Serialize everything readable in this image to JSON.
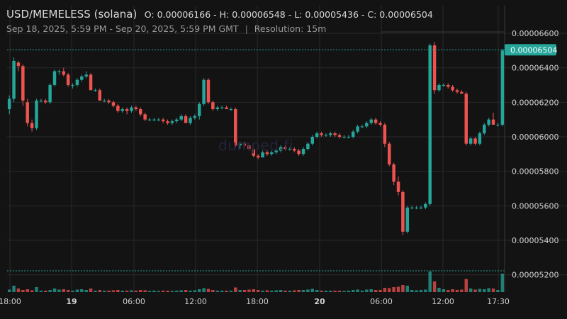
{
  "header": {
    "pair": "USD/MEMELESS (solana)",
    "ohlc": "O: 0.00006166 - H: 0.00006548 - L: 0.00005436 - C: 0.00006504",
    "range": "Sep 18, 2025, 5:59 PM - Sep 20, 2025, 5:59 PM GMT",
    "separator": "|",
    "resolution": "Resolution: 15m"
  },
  "watermark": "dumped.fi",
  "colors": {
    "up": "#26a69a",
    "down": "#ef5350",
    "grid": "#2a2a2a",
    "last_price_bg": "#26a69a"
  },
  "chart_data": {
    "type": "candlestick",
    "y_axis_ticks": [
      "0.00006600",
      "0.00006400",
      "0.00006200",
      "0.00006000",
      "0.00005800",
      "0.00005600",
      "0.00005400",
      "0.00005200"
    ],
    "y_range": [
      5.1e-05,
      6.76e-05
    ],
    "last_price": "0.00006504",
    "x_axis_ticks": [
      "18:00",
      "19",
      "06:00",
      "12:00",
      "18:00",
      "20",
      "06:00",
      "12:00",
      "17:30"
    ],
    "x_tick_bold": [
      false,
      true,
      false,
      false,
      false,
      true,
      false,
      false,
      false
    ],
    "candles": [
      [
        6.16,
        6.24,
        6.13,
        6.22
      ],
      [
        6.22,
        6.46,
        6.2,
        6.44
      ],
      [
        6.43,
        6.44,
        6.38,
        6.41
      ],
      [
        6.41,
        6.42,
        6.18,
        6.21
      ],
      [
        6.2,
        6.22,
        6.06,
        6.08
      ],
      [
        6.08,
        6.1,
        6.03,
        6.05
      ],
      [
        6.05,
        6.22,
        6.04,
        6.21
      ],
      [
        6.21,
        6.22,
        6.2,
        6.21
      ],
      [
        6.21,
        6.22,
        6.19,
        6.2
      ],
      [
        6.2,
        6.31,
        6.19,
        6.3
      ],
      [
        6.3,
        6.39,
        6.29,
        6.38
      ],
      [
        6.38,
        6.39,
        6.36,
        6.38
      ],
      [
        6.38,
        6.4,
        6.35,
        6.36
      ],
      [
        6.36,
        6.37,
        6.29,
        6.3
      ],
      [
        6.3,
        6.31,
        6.28,
        6.3
      ],
      [
        6.3,
        6.34,
        6.29,
        6.33
      ],
      [
        6.33,
        6.36,
        6.32,
        6.35
      ],
      [
        6.35,
        6.38,
        6.34,
        6.36
      ],
      [
        6.36,
        6.37,
        6.27,
        6.27
      ],
      [
        6.27,
        6.28,
        6.26,
        6.27
      ],
      [
        6.27,
        6.28,
        6.21,
        6.21
      ],
      [
        6.21,
        6.22,
        6.2,
        6.21
      ],
      [
        6.21,
        6.22,
        6.19,
        6.2
      ],
      [
        6.2,
        6.21,
        6.17,
        6.18
      ],
      [
        6.18,
        6.19,
        6.14,
        6.15
      ],
      [
        6.15,
        6.17,
        6.14,
        6.16
      ],
      [
        6.16,
        6.17,
        6.13,
        6.15
      ],
      [
        6.15,
        6.18,
        6.14,
        6.17
      ],
      [
        6.17,
        6.18,
        6.15,
        6.16
      ],
      [
        6.16,
        6.17,
        6.12,
        6.13
      ],
      [
        6.13,
        6.14,
        6.09,
        6.1
      ],
      [
        6.1,
        6.11,
        6.09,
        6.1
      ],
      [
        6.1,
        6.11,
        6.09,
        6.1
      ],
      [
        6.1,
        6.11,
        6.09,
        6.1
      ],
      [
        6.1,
        6.11,
        6.08,
        6.09
      ],
      [
        6.09,
        6.1,
        6.07,
        6.08
      ],
      [
        6.08,
        6.1,
        6.07,
        6.09
      ],
      [
        6.09,
        6.11,
        6.08,
        6.1
      ],
      [
        6.1,
        6.13,
        6.09,
        6.12
      ],
      [
        6.12,
        6.13,
        6.08,
        6.08
      ],
      [
        6.08,
        6.12,
        6.07,
        6.11
      ],
      [
        6.11,
        6.13,
        6.1,
        6.12
      ],
      [
        6.12,
        6.2,
        6.1,
        6.19
      ],
      [
        6.19,
        6.34,
        6.18,
        6.33
      ],
      [
        6.33,
        6.34,
        6.19,
        6.2
      ],
      [
        6.2,
        6.21,
        6.15,
        6.16
      ],
      [
        6.16,
        6.18,
        6.15,
        6.17
      ],
      [
        6.17,
        6.18,
        6.16,
        6.17
      ],
      [
        6.17,
        6.18,
        6.16,
        6.16
      ],
      [
        6.16,
        6.17,
        6.15,
        6.16
      ],
      [
        6.16,
        6.17,
        5.94,
        5.95
      ],
      [
        5.95,
        5.97,
        5.93,
        5.96
      ],
      [
        5.96,
        5.97,
        5.94,
        5.95
      ],
      [
        5.95,
        5.96,
        5.92,
        5.93
      ],
      [
        5.93,
        5.94,
        5.88,
        5.89
      ],
      [
        5.89,
        5.9,
        5.87,
        5.88
      ],
      [
        5.88,
        5.92,
        5.88,
        5.91
      ],
      [
        5.91,
        5.92,
        5.89,
        5.9
      ],
      [
        5.9,
        5.92,
        5.89,
        5.91
      ],
      [
        5.91,
        5.93,
        5.9,
        5.92
      ],
      [
        5.92,
        5.95,
        5.91,
        5.94
      ],
      [
        5.94,
        5.95,
        5.92,
        5.93
      ],
      [
        5.93,
        5.94,
        5.92,
        5.93
      ],
      [
        5.93,
        5.94,
        5.91,
        5.92
      ],
      [
        5.92,
        5.93,
        5.89,
        5.9
      ],
      [
        5.9,
        5.94,
        5.89,
        5.93
      ],
      [
        5.93,
        5.97,
        5.92,
        5.96
      ],
      [
        5.96,
        6.01,
        5.95,
        6.0
      ],
      [
        6.0,
        6.03,
        5.99,
        6.02
      ],
      [
        6.02,
        6.03,
        6.0,
        6.01
      ],
      [
        6.01,
        6.02,
        6.0,
        6.01
      ],
      [
        6.01,
        6.03,
        6.0,
        6.02
      ],
      [
        6.02,
        6.03,
        6.0,
        6.01
      ],
      [
        6.01,
        6.02,
        5.99,
        6.0
      ],
      [
        6.0,
        6.01,
        5.99,
        6.0
      ],
      [
        6.0,
        6.01,
        5.99,
        6.0
      ],
      [
        6.0,
        6.04,
        5.99,
        6.03
      ],
      [
        6.03,
        6.07,
        6.02,
        6.06
      ],
      [
        6.06,
        6.07,
        6.05,
        6.06
      ],
      [
        6.06,
        6.09,
        6.05,
        6.08
      ],
      [
        6.08,
        6.11,
        6.07,
        6.1
      ],
      [
        6.1,
        6.11,
        6.07,
        6.08
      ],
      [
        6.08,
        6.09,
        6.06,
        6.07
      ],
      [
        6.07,
        6.08,
        5.94,
        5.96
      ],
      [
        5.96,
        5.97,
        5.83,
        5.84
      ],
      [
        5.84,
        5.85,
        5.72,
        5.74
      ],
      [
        5.74,
        5.77,
        5.66,
        5.68
      ],
      [
        5.68,
        5.69,
        5.43,
        5.45
      ],
      [
        5.45,
        5.6,
        5.44,
        5.59
      ],
      [
        5.59,
        5.6,
        5.58,
        5.59
      ],
      [
        5.59,
        5.6,
        5.58,
        5.59
      ],
      [
        5.59,
        5.6,
        5.58,
        5.59
      ],
      [
        5.59,
        5.62,
        5.58,
        5.61
      ],
      [
        5.61,
        6.54,
        5.6,
        6.53
      ],
      [
        6.53,
        6.55,
        6.25,
        6.27
      ],
      [
        6.27,
        6.31,
        6.26,
        6.3
      ],
      [
        6.3,
        6.31,
        6.29,
        6.3
      ],
      [
        6.3,
        6.31,
        6.28,
        6.29
      ],
      [
        6.29,
        6.3,
        6.26,
        6.27
      ],
      [
        6.27,
        6.28,
        6.25,
        6.26
      ],
      [
        6.26,
        6.27,
        6.25,
        6.25
      ],
      [
        6.25,
        6.26,
        5.95,
        5.96
      ],
      [
        5.96,
        6.0,
        5.95,
        5.99
      ],
      [
        5.99,
        6.0,
        5.95,
        5.96
      ],
      [
        5.96,
        6.03,
        5.95,
        6.02
      ],
      [
        6.02,
        6.08,
        6.01,
        6.07
      ],
      [
        6.07,
        6.11,
        6.06,
        6.1
      ],
      [
        6.1,
        6.14,
        6.07,
        6.07
      ],
      [
        6.07,
        6.08,
        6.06,
        6.07
      ],
      [
        6.07,
        6.51,
        6.06,
        6.5
      ]
    ],
    "volumes": [
      0.35,
      0.9,
      0.5,
      0.3,
      0.4,
      0.25,
      0.7,
      0.2,
      0.2,
      0.3,
      0.5,
      0.35,
      0.4,
      0.3,
      0.2,
      0.35,
      0.4,
      0.3,
      0.5,
      0.2,
      0.3,
      0.2,
      0.2,
      0.25,
      0.3,
      0.2,
      0.2,
      0.25,
      0.2,
      0.3,
      0.25,
      0.15,
      0.2,
      0.15,
      0.2,
      0.2,
      0.15,
      0.2,
      0.25,
      0.3,
      0.2,
      0.25,
      0.4,
      0.55,
      0.45,
      0.3,
      0.2,
      0.2,
      0.2,
      0.2,
      0.65,
      0.3,
      0.3,
      0.35,
      0.4,
      0.3,
      0.2,
      0.25,
      0.2,
      0.25,
      0.3,
      0.2,
      0.2,
      0.25,
      0.3,
      0.3,
      0.35,
      0.45,
      0.3,
      0.2,
      0.2,
      0.2,
      0.2,
      0.2,
      0.15,
      0.2,
      0.3,
      0.35,
      0.2,
      0.35,
      0.4,
      0.3,
      0.3,
      0.6,
      0.55,
      0.7,
      0.75,
      1.0,
      0.9,
      0.3,
      0.25,
      0.3,
      0.35,
      2.9,
      1.5,
      0.6,
      0.4,
      0.3,
      0.4,
      0.3,
      0.35,
      1.85,
      0.5,
      0.35,
      0.45,
      0.4,
      0.55,
      0.5,
      0.3,
      2.6
    ]
  }
}
